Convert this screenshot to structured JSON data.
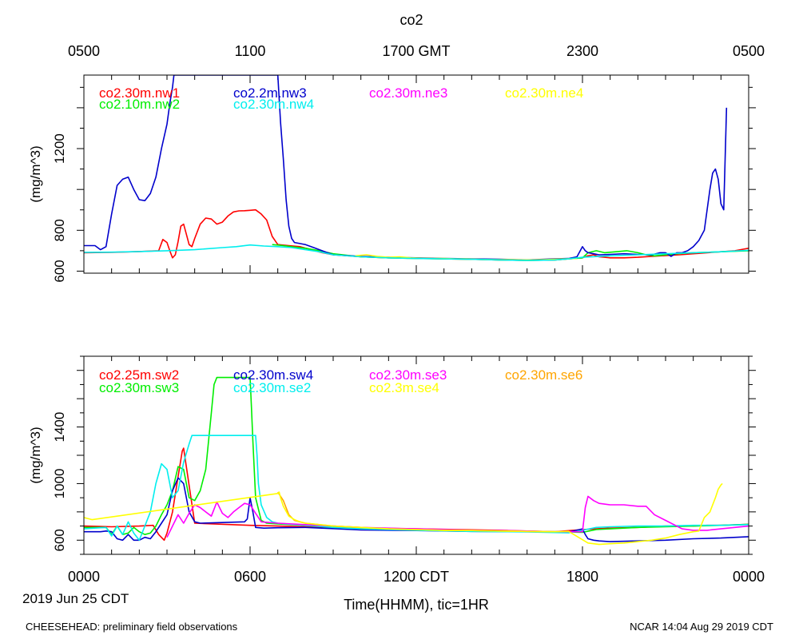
{
  "title": "co2",
  "top_axis_ticks": [
    "0500",
    "1100",
    "1700 GMT",
    "2300",
    "0500"
  ],
  "bottom_axis_ticks": [
    "0000",
    "0600",
    "1200 CDT",
    "1800",
    "0000"
  ],
  "xlabel": "Time(HHMM), tic=1HR",
  "date_label": "2019 Jun 25 CDT",
  "footer_left": "CHEESEHEAD: preliminary field observations",
  "footer_right": "NCAR 14:04 Aug 29 2019 CDT",
  "chart_data": [
    {
      "type": "line",
      "ylabel": "(mg/m^3)",
      "xlim": [
        0,
        24
      ],
      "ylim": [
        590,
        1560
      ],
      "yticks": [
        600,
        800,
        1200
      ],
      "series": [
        {
          "name": "co2.30m.nw1",
          "color": "#ff0000",
          "x": [
            0,
            1,
            2,
            2.7,
            2.85,
            3.0,
            3.1,
            3.2,
            3.3,
            3.4,
            3.5,
            3.6,
            3.7,
            3.8,
            3.9,
            4.0,
            4.2,
            4.4,
            4.6,
            4.8,
            5.0,
            5.2,
            5.4,
            5.6,
            5.8,
            6.0,
            6.2,
            6.4,
            6.6,
            6.8,
            7.0,
            7.4,
            7.8,
            8.2,
            8.6,
            9.0,
            10,
            11,
            12,
            13,
            14,
            15,
            16,
            17,
            17.5,
            18,
            18.2,
            18.4,
            18.6,
            19,
            19.5,
            20,
            20.5,
            21,
            21.5,
            22,
            22.5,
            23,
            23.5,
            24
          ],
          "y": [
            690,
            692,
            696,
            700,
            755,
            740,
            700,
            665,
            680,
            745,
            820,
            830,
            780,
            730,
            720,
            760,
            830,
            860,
            855,
            830,
            840,
            870,
            890,
            895,
            896,
            898,
            900,
            880,
            850,
            770,
            730,
            725,
            720,
            705,
            690,
            680,
            670,
            665,
            663,
            660,
            658,
            655,
            653,
            655,
            660,
            665,
            675,
            680,
            670,
            665,
            665,
            668,
            672,
            676,
            680,
            685,
            690,
            695,
            700,
            712
          ]
        },
        {
          "name": "co2.10m.nw2",
          "color": "#00ee00",
          "x": [
            6.8,
            7.2,
            7.6,
            8.0,
            8.5,
            9.0,
            10,
            11,
            12,
            13,
            14,
            15,
            16,
            17,
            17.5,
            18,
            18.2,
            18.5,
            18.8,
            19.2,
            19.6,
            20,
            20.3,
            20.6,
            21,
            21.5,
            22,
            23,
            24
          ],
          "y": [
            730,
            725,
            718,
            712,
            700,
            685,
            670,
            665,
            662,
            660,
            658,
            655,
            652,
            655,
            660,
            665,
            690,
            700,
            690,
            695,
            700,
            690,
            680,
            675,
            680,
            686,
            690,
            695,
            700
          ]
        },
        {
          "name": "co2.2m.nw3",
          "color": "#0000cc",
          "x": [
            0,
            0.4,
            0.6,
            0.8,
            1.0,
            1.2,
            1.4,
            1.6,
            1.8,
            2.0,
            2.2,
            2.4,
            2.6,
            2.8,
            3.0,
            3.1,
            3.2,
            3.25,
            7.0,
            7.1,
            7.2,
            7.3,
            7.4,
            7.5,
            7.6,
            7.8,
            8.0,
            8.3,
            8.6,
            9,
            10,
            11,
            12,
            13,
            14,
            15,
            16,
            17,
            17.5,
            17.8,
            18.0,
            18.1,
            18.2,
            18.4,
            18.6,
            19,
            19.5,
            20,
            20.5,
            20.8,
            21.0,
            21.2,
            21.4,
            21.6,
            21.8,
            22.0,
            22.2,
            22.4,
            22.5,
            22.6,
            22.7,
            22.8,
            22.9,
            23.0,
            23.1,
            23.2
          ],
          "y": [
            725,
            725,
            705,
            720,
            880,
            1020,
            1050,
            1060,
            1000,
            950,
            945,
            980,
            1060,
            1200,
            1320,
            1420,
            1500,
            1560,
            1560,
            1330,
            1150,
            950,
            820,
            760,
            740,
            735,
            730,
            715,
            700,
            680,
            672,
            668,
            665,
            662,
            660,
            658,
            655,
            660,
            662,
            670,
            720,
            700,
            690,
            685,
            680,
            682,
            685,
            682,
            680,
            690,
            690,
            672,
            690,
            690,
            700,
            720,
            750,
            800,
            900,
            1000,
            1080,
            1100,
            1050,
            930,
            900,
            1400
          ]
        },
        {
          "name": "co2.30m.ne3",
          "color": "#ff00ff",
          "x": [],
          "y": []
        },
        {
          "name": "co2.30m.ne4",
          "color": "#ffff00",
          "x": [
            9.8,
            10.2,
            10.6,
            11.0,
            11.4,
            11.8,
            12.2,
            12.6,
            13.0,
            13.4,
            13.8,
            14.2,
            14.6,
            15.0,
            15.4,
            15.8,
            16.2,
            16.6,
            17.0,
            17.4,
            17.8
          ],
          "y": [
            675,
            680,
            672,
            668,
            670,
            665,
            663,
            662,
            662,
            660,
            660,
            658,
            657,
            656,
            656,
            655,
            655,
            656,
            658,
            660,
            662
          ]
        },
        {
          "name": "co2.30m.nw4",
          "color": "#00eeee",
          "x": [
            0,
            1,
            2,
            3,
            4,
            5,
            5.5,
            6,
            6.5,
            7,
            7.5,
            8,
            8.5,
            9,
            10,
            11,
            12,
            13,
            14,
            15,
            16,
            17,
            17.5,
            18,
            19,
            20,
            21,
            22,
            23,
            24
          ],
          "y": [
            692,
            693,
            696,
            700,
            705,
            715,
            720,
            728,
            723,
            720,
            715,
            705,
            695,
            680,
            670,
            665,
            662,
            660,
            658,
            655,
            652,
            655,
            660,
            668,
            675,
            680,
            685,
            690,
            695,
            702
          ]
        }
      ]
    },
    {
      "type": "line",
      "ylabel": "(mg/m^3)",
      "xlim": [
        0,
        24
      ],
      "ylim": [
        500,
        1900
      ],
      "yticks": [
        600,
        1000,
        1400
      ],
      "series": [
        {
          "name": "co2.25m.sw2",
          "color": "#ff0000",
          "x": [
            0,
            1,
            2,
            2.5,
            2.7,
            2.9,
            3.0,
            3.2,
            3.4,
            3.55,
            3.6,
            4,
            6,
            9,
            12,
            15,
            17,
            18,
            18.5,
            19,
            20,
            21,
            22,
            22.5,
            23,
            24
          ],
          "y": [
            700,
            695,
            700,
            705,
            640,
            600,
            650,
            800,
            1050,
            1230,
            1250,
            720,
            705,
            690,
            680,
            670,
            660,
            675,
            680,
            685,
            690,
            700,
            700,
            705,
            705,
            712
          ]
        },
        {
          "name": "co2.30m.sw3",
          "color": "#00ee00",
          "x": [
            0,
            0.8,
            1.0,
            1.2,
            1.4,
            1.6,
            1.8,
            2.0,
            2.2,
            2.4,
            2.6,
            2.8,
            3.0,
            3.2,
            3.4,
            3.6,
            3.8,
            4.0,
            4.2,
            4.4,
            4.6,
            4.7,
            4.8,
            6.0,
            6.05,
            6.1,
            6.2,
            6.4,
            6.6,
            7,
            8,
            9,
            10,
            12,
            14,
            16,
            17,
            18,
            18.5,
            19,
            20,
            21,
            22,
            23,
            24
          ],
          "y": [
            690,
            690,
            640,
            700,
            640,
            650,
            690,
            660,
            640,
            650,
            700,
            780,
            850,
            950,
            1120,
            1100,
            900,
            880,
            950,
            1100,
            1500,
            1700,
            1750,
            1750,
            1540,
            1300,
            900,
            740,
            720,
            715,
            705,
            690,
            680,
            672,
            665,
            660,
            660,
            655,
            675,
            680,
            690,
            695,
            700,
            705,
            712
          ]
        },
        {
          "name": "co2.30m.sw4",
          "color": "#0000cc",
          "x": [
            0,
            0.6,
            0.8,
            1.0,
            1.2,
            1.4,
            1.6,
            1.8,
            2.0,
            2.2,
            2.4,
            2.6,
            2.8,
            3.0,
            3.2,
            3.4,
            3.6,
            3.8,
            4.0,
            4.2,
            5.8,
            5.9,
            6.0,
            6.1,
            6.2,
            6.5,
            7,
            8,
            9,
            10,
            12,
            14,
            16,
            17.5,
            18.0,
            18.1,
            18.2,
            18.4,
            18.6,
            19.0,
            20,
            21,
            22,
            23,
            24
          ],
          "y": [
            660,
            660,
            665,
            660,
            610,
            600,
            640,
            600,
            600,
            620,
            610,
            660,
            720,
            780,
            950,
            1040,
            1000,
            800,
            730,
            720,
            730,
            750,
            900,
            800,
            690,
            685,
            688,
            690,
            682,
            672,
            668,
            662,
            660,
            658,
            680,
            640,
            610,
            600,
            595,
            590,
            595,
            600,
            610,
            615,
            625
          ]
        },
        {
          "name": "co2.30m.se2",
          "color": "#00eeee",
          "x": [
            0,
            0.8,
            1.0,
            1.2,
            1.4,
            1.6,
            1.8,
            2.0,
            2.2,
            2.4,
            2.6,
            2.8,
            3.0,
            3.2,
            3.4,
            3.6,
            3.8,
            3.9,
            4.0,
            6.2,
            6.25,
            6.3,
            6.4,
            6.6,
            6.8,
            7.0,
            8,
            9,
            10,
            12,
            14,
            16,
            17.5,
            18,
            18.5,
            19,
            20,
            21,
            22,
            23,
            24
          ],
          "y": [
            680,
            690,
            630,
            700,
            640,
            730,
            650,
            600,
            700,
            800,
            1000,
            1140,
            1100,
            900,
            950,
            1150,
            1280,
            1340,
            1340,
            1340,
            1200,
            1000,
            850,
            760,
            730,
            720,
            705,
            690,
            680,
            670,
            662,
            658,
            652,
            670,
            690,
            695,
            700,
            700,
            705,
            705,
            710
          ]
        },
        {
          "name": "co2.30m.se3",
          "color": "#ff00ff",
          "x": [
            3.0,
            3.2,
            3.4,
            3.6,
            3.8,
            4.0,
            4.2,
            4.4,
            4.6,
            4.8,
            5.0,
            5.2,
            5.4,
            5.6,
            5.8,
            6.0,
            6.4,
            7,
            8,
            9,
            10,
            12,
            14,
            16,
            17,
            17.5,
            18,
            18.1,
            18.2,
            18.4,
            18.6,
            19,
            19.5,
            20,
            20.3,
            20.6,
            21,
            21.4,
            21.6,
            22,
            22.5,
            23,
            23.5,
            24
          ],
          "y": [
            620,
            700,
            780,
            720,
            790,
            850,
            830,
            800,
            770,
            870,
            790,
            760,
            800,
            830,
            860,
            850,
            730,
            720,
            710,
            700,
            690,
            680,
            670,
            665,
            660,
            660,
            660,
            830,
            910,
            880,
            860,
            850,
            850,
            840,
            840,
            780,
            740,
            700,
            680,
            670,
            670,
            680,
            690,
            700
          ]
        },
        {
          "name": "co2.30m.se6",
          "color": "#ffa500",
          "x": [
            7.0,
            7.2,
            7.4,
            7.6,
            7.8,
            8.0,
            8.5,
            9,
            10,
            11,
            12,
            13,
            14,
            15,
            16,
            17
          ],
          "y": [
            940,
            880,
            780,
            740,
            730,
            720,
            710,
            700,
            690,
            680,
            675,
            670,
            668,
            665,
            662,
            660
          ]
        },
        {
          "name": "co2.3m.se4",
          "color": "#ffff00",
          "x": [
            0,
            0.3,
            7.0,
            7.05,
            7.1,
            7.2,
            7.4,
            7.6,
            7.8,
            8.0,
            8.5,
            9,
            10,
            11,
            12,
            13,
            14,
            15,
            16,
            17,
            17.5,
            18.2,
            18.6,
            19.0,
            19.5,
            20,
            20.5,
            21,
            21.5,
            22,
            22.2,
            22.4,
            22.6,
            22.8,
            22.9,
            23.0,
            23.05
          ],
          "y": [
            760,
            745,
            930,
            940,
            900,
            840,
            770,
            745,
            730,
            720,
            710,
            700,
            690,
            680,
            675,
            670,
            668,
            665,
            662,
            660,
            662,
            580,
            570,
            575,
            580,
            590,
            600,
            615,
            640,
            660,
            665,
            760,
            800,
            900,
            960,
            990,
            1000
          ]
        }
      ]
    }
  ]
}
